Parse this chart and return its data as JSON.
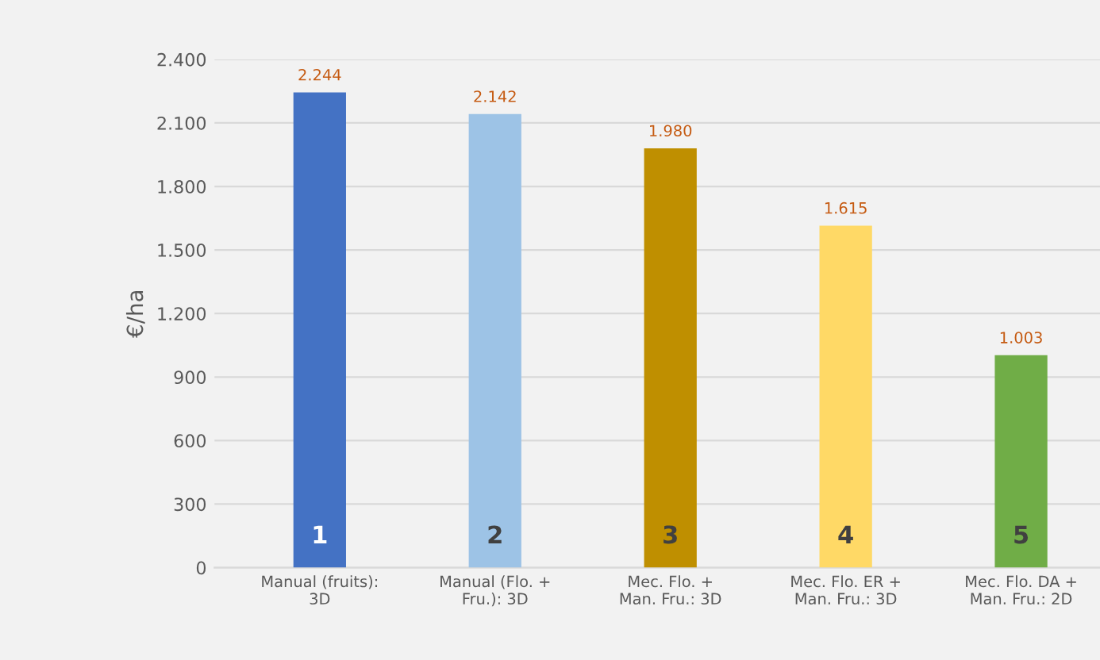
{
  "chart_data": {
    "type": "bar",
    "ylabel": "€/ha",
    "categories": [
      "Manual (fruits):\n3D",
      "Manual (Flo. +\nFru.): 3D",
      "Mec. Flo. +\nMan. Fru.: 3D",
      "Mec. Flo. ER +\nMan. Fru.: 3D",
      "Mec. Flo. DA +\nMan. Fru.: 2D"
    ],
    "values": [
      2244,
      2142,
      1980,
      1615,
      1003
    ],
    "colors": [
      "#4472c4",
      "#9dc3e6",
      "#bf8f00",
      "#ffd966",
      "#70ad47"
    ],
    "value_labels": [
      "2.244",
      "2.142",
      "1.980",
      "1.615",
      "1.003"
    ],
    "annotations": [
      "1",
      "2",
      "3",
      "4",
      "5"
    ],
    "ylim": [
      0,
      2400
    ],
    "yticks": [
      {
        "value": 0,
        "label": "0"
      },
      {
        "value": 300,
        "label": "300"
      },
      {
        "value": 600,
        "label": "600"
      },
      {
        "value": 900,
        "label": "900"
      },
      {
        "value": 1200,
        "label": "1.200"
      },
      {
        "value": 1500,
        "label": "1.500"
      },
      {
        "value": 1800,
        "label": "1.800"
      },
      {
        "value": 2100,
        "label": "2.100"
      },
      {
        "value": 2400,
        "label": "2.400"
      }
    ],
    "grid": "y"
  }
}
